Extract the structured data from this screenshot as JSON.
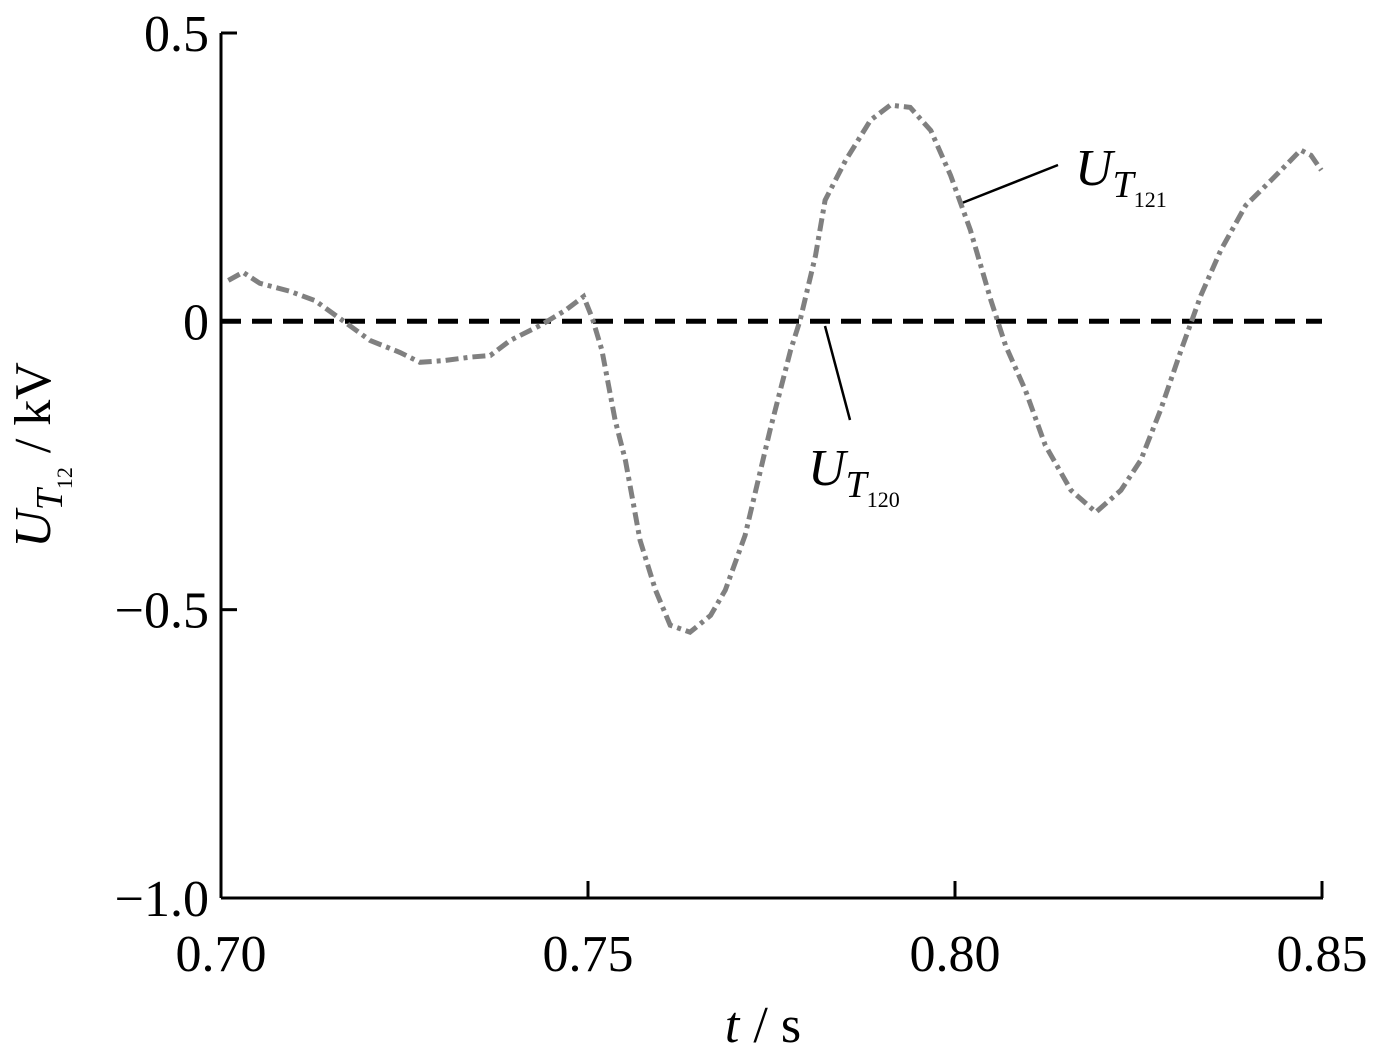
{
  "chart_data": {
    "type": "line",
    "xlabel": {
      "symbol": "t",
      "unit": "/ s"
    },
    "ylabel": {
      "symbol": "U",
      "sub": "T",
      "subsub": "12",
      "unit": "/ kV"
    },
    "xlim": [
      0.7,
      0.85
    ],
    "ylim": [
      -1.0,
      0.5
    ],
    "xticks": [
      {
        "value": 0.7,
        "label": "0.70"
      },
      0.75,
      {
        "value": 0.8,
        "label": "0.80"
      },
      0.85
    ],
    "yticks": [
      {
        "value": -1.0,
        "label": "−1.0"
      },
      {
        "value": -0.5,
        "label": "−0.5"
      },
      0,
      0.5
    ],
    "series": [
      {
        "name": {
          "symbol": "U",
          "sub": "T",
          "subsub": "120"
        },
        "color": "#000000",
        "dash": "dashed",
        "x": [
          0.7,
          0.85
        ],
        "values": [
          0,
          0
        ]
      },
      {
        "name": {
          "symbol": "U",
          "sub": "T",
          "subsub": "121"
        },
        "color": "#808080",
        "dash": "dashdot",
        "x": [
          0.701,
          0.703,
          0.7053,
          0.7094,
          0.7128,
          0.7162,
          0.7203,
          0.7244,
          0.7271,
          0.7305,
          0.734,
          0.7367,
          0.7394,
          0.7435,
          0.7469,
          0.7494,
          0.7506,
          0.7519,
          0.7537,
          0.7551,
          0.7571,
          0.7592,
          0.7612,
          0.7639,
          0.7667,
          0.7687,
          0.7714,
          0.7748,
          0.7776,
          0.7789,
          0.781,
          0.7823,
          0.7851,
          0.7885,
          0.7912,
          0.7939,
          0.7967,
          0.7994,
          0.8021,
          0.8049,
          0.8069,
          0.8096,
          0.8123,
          0.8158,
          0.8192,
          0.8226,
          0.8253,
          0.828,
          0.8308,
          0.8335,
          0.8362,
          0.8396,
          0.8431,
          0.8471,
          0.8485,
          0.8499
        ],
        "values": [
          0.071,
          0.085,
          0.066,
          0.052,
          0.036,
          0.005,
          -0.033,
          -0.054,
          -0.071,
          -0.068,
          -0.062,
          -0.059,
          -0.033,
          -0.007,
          0.019,
          0.043,
          0.005,
          -0.05,
          -0.172,
          -0.241,
          -0.38,
          -0.466,
          -0.527,
          -0.539,
          -0.51,
          -0.466,
          -0.371,
          -0.189,
          -0.05,
          0.002,
          0.114,
          0.21,
          0.279,
          0.349,
          0.375,
          0.371,
          0.331,
          0.253,
          0.158,
          0.036,
          -0.042,
          -0.12,
          -0.215,
          -0.293,
          -0.331,
          -0.293,
          -0.241,
          -0.154,
          -0.05,
          0.045,
          0.123,
          0.201,
          0.245,
          0.297,
          0.288,
          0.262
        ]
      }
    ]
  }
}
